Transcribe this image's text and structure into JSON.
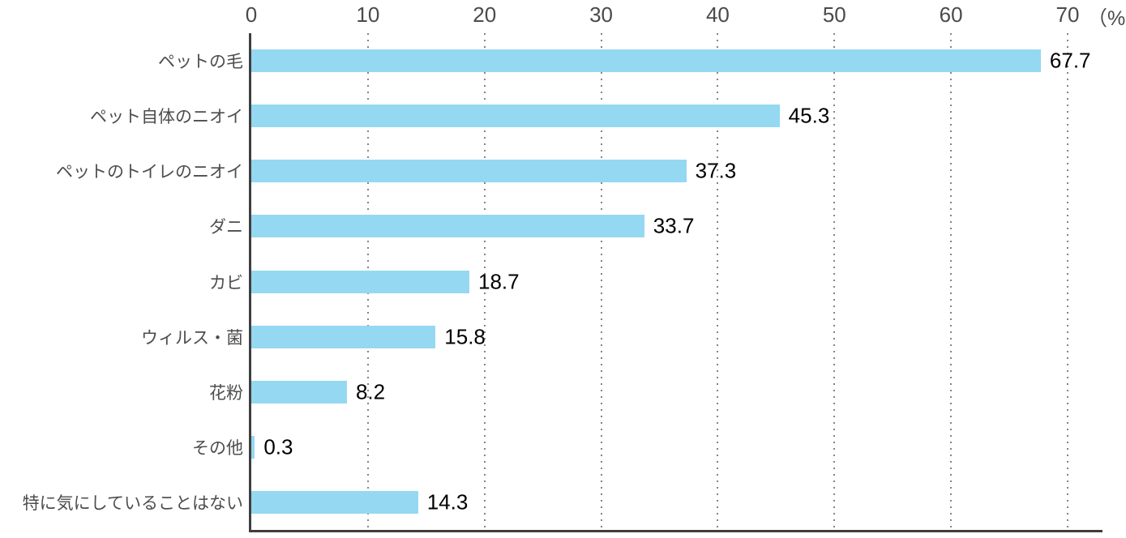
{
  "chart_data": {
    "type": "bar",
    "orientation": "horizontal",
    "title": "",
    "categories": [
      "ペットの毛",
      "ペット自体のニオイ",
      "ペットのトイレのニオイ",
      "ダニ",
      "カビ",
      "ウィルス・菌",
      "花粉",
      "その他",
      "特に気にしていることはない"
    ],
    "values": [
      67.7,
      45.3,
      37.3,
      33.7,
      18.7,
      15.8,
      8.2,
      0.3,
      14.3
    ],
    "x_ticks": [
      0,
      10,
      20,
      30,
      40,
      50,
      60,
      70
    ],
    "x_unit_label": "（%）",
    "xlim": [
      0,
      70
    ],
    "grid": "dotted-vertical",
    "legend": "none",
    "colors": {
      "bar": "#95d8f1",
      "axis_line": "#3f3f3f",
      "gridline": "#848484",
      "tick_label": "#4a4a4a",
      "category_label": "#4d4d4d",
      "value_label": "#000000",
      "background": "#ffffff"
    }
  }
}
